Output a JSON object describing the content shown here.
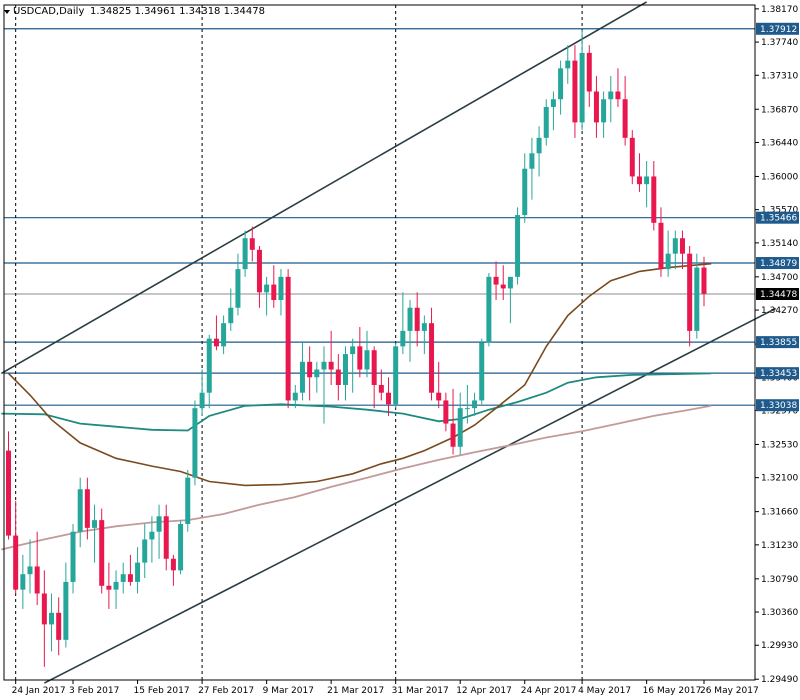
{
  "header": {
    "symbol": "USDCAD,Daily",
    "ohlc": "1.34825 1.34961 1.34318 1.34478"
  },
  "colors": {
    "bull": "#26a69a",
    "bear": "#e8174e",
    "hline": "#1e5a8c",
    "channel": "#2b3d44",
    "ma_fast": "#7a4a1e",
    "ma_mid": "#1e8a80",
    "ma_slow": "#c29a9a",
    "current_tag_bg": "#000000",
    "tag_bg": "#1e5a8c"
  },
  "chart_data": {
    "type": "candlestick",
    "title": "",
    "ylim": [
      1.2948,
      1.3822
    ],
    "x_tick_labels": [
      "24 Jan 2017",
      "3 Feb 2017",
      "15 Feb 2017",
      "27 Feb 2017",
      "9 Mar 2017",
      "21 Mar 2017",
      "31 Mar 2017",
      "12 Apr 2017",
      "24 Apr 2017",
      "4 May 2017",
      "16 May 2017",
      "26 May 2017"
    ],
    "x_tick_index": [
      1,
      9,
      18,
      27,
      36,
      45,
      54,
      63,
      72,
      80,
      89,
      97
    ],
    "y_tick_labels": [
      "1.38170",
      "1.37740",
      "1.37310",
      "1.36870",
      "1.36440",
      "1.36000",
      "1.35570",
      "1.35140",
      "1.34700",
      "1.34270",
      "1.33830",
      "1.33400",
      "1.32970",
      "1.32530",
      "1.32100",
      "1.31660",
      "1.31230",
      "1.30790",
      "1.30360",
      "1.29930",
      "1.29490"
    ],
    "y_tick_values": [
      1.3817,
      1.3774,
      1.3731,
      1.3687,
      1.3644,
      1.36,
      1.3557,
      1.3514,
      1.347,
      1.3427,
      1.3383,
      1.334,
      1.3297,
      1.3253,
      1.321,
      1.3166,
      1.3123,
      1.3079,
      1.3036,
      1.2993,
      1.2949
    ],
    "levels": [
      {
        "value": 1.37912,
        "label": "1.37912"
      },
      {
        "value": 1.35466,
        "label": "1.35466"
      },
      {
        "value": 1.34879,
        "label": "1.34879"
      },
      {
        "value": 1.33855,
        "label": "1.33855"
      },
      {
        "value": 1.33453,
        "label": "1.33453"
      },
      {
        "value": 1.33038,
        "label": "1.33038"
      }
    ],
    "current_price": {
      "value": 1.34478,
      "label": "1.34478"
    },
    "vertical_separators": [
      1,
      27,
      54,
      80
    ],
    "channel_lines": [
      {
        "x1": -1,
        "y1": 1.3345,
        "x2": 89,
        "y2": 1.3826
      },
      {
        "x1": 5,
        "y1": 1.2944,
        "x2": 107,
        "y2": 1.3429
      }
    ],
    "ma_fast": [
      [
        0,
        1.3345
      ],
      [
        3,
        1.3317
      ],
      [
        6,
        1.3285
      ],
      [
        10,
        1.3255
      ],
      [
        15,
        1.3235
      ],
      [
        20,
        1.3225
      ],
      [
        24,
        1.3218
      ],
      [
        28,
        1.3205
      ],
      [
        33,
        1.32
      ],
      [
        38,
        1.3201
      ],
      [
        43,
        1.3205
      ],
      [
        48,
        1.3215
      ],
      [
        52,
        1.3228
      ],
      [
        55,
        1.3235
      ],
      [
        58,
        1.3245
      ],
      [
        62,
        1.3262
      ],
      [
        65,
        1.3278
      ],
      [
        68,
        1.33
      ],
      [
        72,
        1.333
      ],
      [
        75,
        1.338
      ],
      [
        78,
        1.342
      ],
      [
        81,
        1.3445
      ],
      [
        84,
        1.3465
      ],
      [
        88,
        1.3477
      ],
      [
        92,
        1.3482
      ],
      [
        98,
        1.3487
      ]
    ],
    "ma_mid": [
      [
        -1,
        1.3293
      ],
      [
        5,
        1.3292
      ],
      [
        10,
        1.328
      ],
      [
        15,
        1.3276
      ],
      [
        20,
        1.3272
      ],
      [
        25,
        1.3271
      ],
      [
        28,
        1.329
      ],
      [
        33,
        1.3303
      ],
      [
        38,
        1.3305
      ],
      [
        45,
        1.3302
      ],
      [
        50,
        1.3298
      ],
      [
        55,
        1.3293
      ],
      [
        60,
        1.3283
      ],
      [
        63,
        1.3286
      ],
      [
        67,
        1.3298
      ],
      [
        71,
        1.3308
      ],
      [
        75,
        1.332
      ],
      [
        78,
        1.3333
      ],
      [
        82,
        1.334
      ],
      [
        87,
        1.3343
      ],
      [
        92,
        1.3344
      ],
      [
        98,
        1.3345
      ]
    ],
    "ma_slow": [
      [
        -1,
        1.3117
      ],
      [
        5,
        1.313
      ],
      [
        10,
        1.314
      ],
      [
        15,
        1.3147
      ],
      [
        20,
        1.3152
      ],
      [
        25,
        1.3155
      ],
      [
        30,
        1.3163
      ],
      [
        35,
        1.3175
      ],
      [
        40,
        1.3185
      ],
      [
        45,
        1.3198
      ],
      [
        50,
        1.321
      ],
      [
        55,
        1.3222
      ],
      [
        60,
        1.3233
      ],
      [
        65,
        1.3243
      ],
      [
        70,
        1.3252
      ],
      [
        75,
        1.3262
      ],
      [
        80,
        1.327
      ],
      [
        85,
        1.328
      ],
      [
        90,
        1.329
      ],
      [
        95,
        1.3298
      ],
      [
        98,
        1.3303
      ]
    ],
    "candles": [
      [
        1.3245,
        1.327,
        1.313,
        1.3135
      ],
      [
        1.3135,
        1.318,
        1.306,
        1.3065
      ],
      [
        1.3065,
        1.311,
        1.304,
        1.3085
      ],
      [
        1.3085,
        1.313,
        1.306,
        1.3095
      ],
      [
        1.3095,
        1.314,
        1.3045,
        1.306
      ],
      [
        1.306,
        1.309,
        1.2965,
        1.302
      ],
      [
        1.302,
        1.306,
        1.2985,
        1.3035
      ],
      [
        1.3035,
        1.3055,
        1.298,
        1.3
      ],
      [
        1.3,
        1.31,
        1.299,
        1.3075
      ],
      [
        1.3075,
        1.315,
        1.306,
        1.314
      ],
      [
        1.314,
        1.321,
        1.312,
        1.3195
      ],
      [
        1.3195,
        1.321,
        1.313,
        1.3145
      ],
      [
        1.3145,
        1.3175,
        1.31,
        1.3155
      ],
      [
        1.3155,
        1.317,
        1.306,
        1.307
      ],
      [
        1.307,
        1.31,
        1.304,
        1.3065
      ],
      [
        1.3065,
        1.309,
        1.304,
        1.3075
      ],
      [
        1.3075,
        1.31,
        1.306,
        1.3085
      ],
      [
        1.3085,
        1.311,
        1.307,
        1.3075
      ],
      [
        1.3075,
        1.312,
        1.306,
        1.31
      ],
      [
        1.31,
        1.315,
        1.308,
        1.313
      ],
      [
        1.313,
        1.316,
        1.31,
        1.314
      ],
      [
        1.314,
        1.3175,
        1.3105,
        1.316
      ],
      [
        1.316,
        1.3175,
        1.309,
        1.3105
      ],
      [
        1.3105,
        1.311,
        1.307,
        1.309
      ],
      [
        1.309,
        1.3155,
        1.3085,
        1.315
      ],
      [
        1.315,
        1.322,
        1.314,
        1.321
      ],
      [
        1.321,
        1.331,
        1.32,
        1.33
      ],
      [
        1.33,
        1.335,
        1.329,
        1.332
      ],
      [
        1.332,
        1.3395,
        1.33,
        1.339
      ],
      [
        1.339,
        1.342,
        1.3375,
        1.338
      ],
      [
        1.338,
        1.342,
        1.337,
        1.341
      ],
      [
        1.341,
        1.3455,
        1.34,
        1.343
      ],
      [
        1.343,
        1.35,
        1.342,
        1.348
      ],
      [
        1.348,
        1.353,
        1.347,
        1.352
      ],
      [
        1.352,
        1.3535,
        1.349,
        1.3505
      ],
      [
        1.3505,
        1.351,
        1.343,
        1.345
      ],
      [
        1.345,
        1.347,
        1.342,
        1.346
      ],
      [
        1.346,
        1.3485,
        1.343,
        1.344
      ],
      [
        1.344,
        1.348,
        1.342,
        1.347
      ],
      [
        1.347,
        1.348,
        1.33,
        1.331
      ],
      [
        1.331,
        1.333,
        1.33,
        1.332
      ],
      [
        1.332,
        1.3385,
        1.331,
        1.336
      ],
      [
        1.336,
        1.338,
        1.331,
        1.334
      ],
      [
        1.334,
        1.336,
        1.332,
        1.335
      ],
      [
        1.335,
        1.338,
        1.328,
        1.336
      ],
      [
        1.336,
        1.34,
        1.333,
        1.335
      ],
      [
        1.335,
        1.337,
        1.331,
        1.333
      ],
      [
        1.333,
        1.338,
        1.331,
        1.337
      ],
      [
        1.337,
        1.339,
        1.332,
        1.338
      ],
      [
        1.338,
        1.3405,
        1.334,
        1.335
      ],
      [
        1.335,
        1.34,
        1.334,
        1.3375
      ],
      [
        1.3375,
        1.338,
        1.33,
        1.333
      ],
      [
        1.333,
        1.335,
        1.331,
        1.332
      ],
      [
        1.332,
        1.334,
        1.329,
        1.3305
      ],
      [
        1.3305,
        1.3385,
        1.33,
        1.338
      ],
      [
        1.338,
        1.345,
        1.337,
        1.34
      ],
      [
        1.34,
        1.344,
        1.336,
        1.343
      ],
      [
        1.343,
        1.345,
        1.338,
        1.34
      ],
      [
        1.34,
        1.342,
        1.337,
        1.341
      ],
      [
        1.341,
        1.343,
        1.331,
        1.332
      ],
      [
        1.332,
        1.336,
        1.33,
        1.331
      ],
      [
        1.331,
        1.332,
        1.327,
        1.328
      ],
      [
        1.328,
        1.3325,
        1.324,
        1.325
      ],
      [
        1.325,
        1.332,
        1.324,
        1.33
      ],
      [
        1.33,
        1.333,
        1.328,
        1.33
      ],
      [
        1.33,
        1.332,
        1.329,
        1.331
      ],
      [
        1.331,
        1.339,
        1.3305,
        1.3385
      ],
      [
        1.3385,
        1.3475,
        1.338,
        1.347
      ],
      [
        1.347,
        1.349,
        1.344,
        1.346
      ],
      [
        1.346,
        1.3485,
        1.344,
        1.3455
      ],
      [
        1.3455,
        1.347,
        1.341,
        1.347
      ],
      [
        1.347,
        1.356,
        1.346,
        1.355
      ],
      [
        1.355,
        1.363,
        1.354,
        1.361
      ],
      [
        1.361,
        1.365,
        1.357,
        1.363
      ],
      [
        1.363,
        1.3665,
        1.36,
        1.365
      ],
      [
        1.365,
        1.37,
        1.364,
        1.369
      ],
      [
        1.369,
        1.371,
        1.366,
        1.37
      ],
      [
        1.37,
        1.375,
        1.368,
        1.374
      ],
      [
        1.374,
        1.377,
        1.372,
        1.375
      ],
      [
        1.375,
        1.377,
        1.365,
        1.367
      ],
      [
        1.367,
        1.379,
        1.366,
        1.376
      ],
      [
        1.376,
        1.377,
        1.369,
        1.371
      ],
      [
        1.371,
        1.373,
        1.365,
        1.367
      ],
      [
        1.367,
        1.371,
        1.365,
        1.37
      ],
      [
        1.37,
        1.373,
        1.367,
        1.371
      ],
      [
        1.371,
        1.374,
        1.369,
        1.37
      ],
      [
        1.37,
        1.373,
        1.364,
        1.365
      ],
      [
        1.365,
        1.366,
        1.359,
        1.36
      ],
      [
        1.36,
        1.363,
        1.358,
        1.359
      ],
      [
        1.359,
        1.362,
        1.356,
        1.36
      ],
      [
        1.36,
        1.362,
        1.353,
        1.354
      ],
      [
        1.354,
        1.356,
        1.347,
        1.348
      ],
      [
        1.348,
        1.353,
        1.347,
        1.35
      ],
      [
        1.35,
        1.353,
        1.348,
        1.352
      ],
      [
        1.352,
        1.353,
        1.348,
        1.35
      ],
      [
        1.35,
        1.351,
        1.338,
        1.34
      ],
      [
        1.34,
        1.35,
        1.339,
        1.3482
      ],
      [
        1.3482,
        1.3496,
        1.3432,
        1.3448
      ]
    ]
  }
}
